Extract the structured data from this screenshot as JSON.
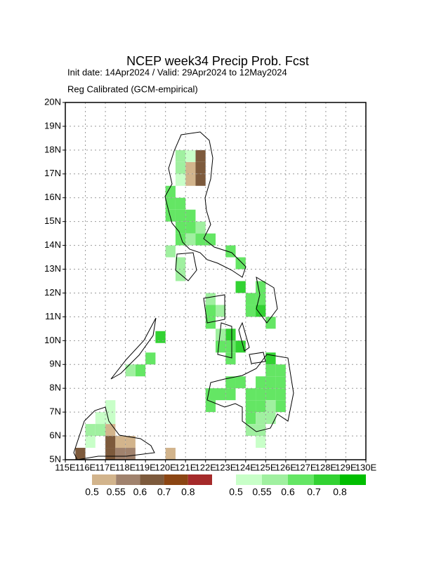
{
  "title": "NCEP week34 Precip Prob. Fcst",
  "subtitle": "Init date: 14Apr2024 / Valid: 29Apr2024 to 12May2024",
  "method": "Reg Calibrated (GCM-empirical)",
  "map": {
    "xlim": [
      115,
      130
    ],
    "ylim": [
      5,
      20
    ],
    "cell_size": 0.5,
    "grid": true,
    "xticks": [
      {
        "value": 115,
        "label": "115E"
      },
      {
        "value": 116,
        "label": "116E"
      },
      {
        "value": 117,
        "label": "117E"
      },
      {
        "value": 118,
        "label": "118E"
      },
      {
        "value": 119,
        "label": "119E"
      },
      {
        "value": 120,
        "label": "120E"
      },
      {
        "value": 121,
        "label": "121E"
      },
      {
        "value": 122,
        "label": "122E"
      },
      {
        "value": 123,
        "label": "123E"
      },
      {
        "value": 124,
        "label": "124E"
      },
      {
        "value": 125,
        "label": "125E"
      },
      {
        "value": 126,
        "label": "126E"
      },
      {
        "value": 127,
        "label": "127E"
      },
      {
        "value": 128,
        "label": "128E"
      },
      {
        "value": 129,
        "label": "129E"
      },
      {
        "value": 130,
        "label": "130E"
      }
    ],
    "yticks": [
      {
        "value": 5,
        "label": "5N"
      },
      {
        "value": 6,
        "label": "6N"
      },
      {
        "value": 7,
        "label": "7N"
      },
      {
        "value": 8,
        "label": "8N"
      },
      {
        "value": 9,
        "label": "9N"
      },
      {
        "value": 10,
        "label": "10N"
      },
      {
        "value": 11,
        "label": "11N"
      },
      {
        "value": 12,
        "label": "12N"
      },
      {
        "value": 13,
        "label": "13N"
      },
      {
        "value": 14,
        "label": "14N"
      },
      {
        "value": 15,
        "label": "15N"
      },
      {
        "value": 16,
        "label": "16N"
      },
      {
        "value": 17,
        "label": "17N"
      },
      {
        "value": 18,
        "label": "18N"
      },
      {
        "value": 19,
        "label": "19N"
      },
      {
        "value": 20,
        "label": "20N"
      }
    ],
    "dry_legend": {
      "thresholds": [
        0.5,
        0.55,
        0.6,
        0.7,
        0.8
      ],
      "colors": [
        "#d2b48c",
        "#a0826d",
        "#7d5a3c",
        "#8b4513",
        "#a52a2a"
      ]
    },
    "wet_legend": {
      "thresholds": [
        0.5,
        0.55,
        0.6,
        0.7,
        0.8
      ],
      "colors": [
        "#c8ffc8",
        "#a0f0a0",
        "#64e664",
        "#32d232",
        "#00be00"
      ]
    },
    "dry_cells": [
      {
        "lon": 121.5,
        "lat": 17.5,
        "prob": 0.6
      },
      {
        "lon": 121.0,
        "lat": 17.0,
        "prob": 0.5
      },
      {
        "lon": 121.0,
        "lat": 16.5,
        "prob": 0.5
      },
      {
        "lon": 121.5,
        "lat": 17.0,
        "prob": 0.6
      },
      {
        "lon": 121.5,
        "lat": 16.5,
        "prob": 0.6
      },
      {
        "lon": 117.0,
        "lat": 6.0,
        "prob": 0.5
      },
      {
        "lon": 117.0,
        "lat": 5.5,
        "prob": 0.6
      },
      {
        "lon": 117.5,
        "lat": 5.5,
        "prob": 0.5
      },
      {
        "lon": 118.0,
        "lat": 5.5,
        "prob": 0.5
      },
      {
        "lon": 117.0,
        "lat": 5.0,
        "prob": 0.6
      },
      {
        "lon": 115.5,
        "lat": 5.0,
        "prob": 0.6
      },
      {
        "lon": 117.5,
        "lat": 5.0,
        "prob": 0.55
      },
      {
        "lon": 118.0,
        "lat": 5.0,
        "prob": 0.55
      },
      {
        "lon": 120.0,
        "lat": 5.0,
        "prob": 0.5
      }
    ],
    "wet_cells": [
      {
        "lon": 120.5,
        "lat": 17.5,
        "prob": 0.55
      },
      {
        "lon": 121.0,
        "lat": 17.5,
        "prob": 0.5
      },
      {
        "lon": 120.5,
        "lat": 17.0,
        "prob": 0.55
      },
      {
        "lon": 120.5,
        "lat": 16.5,
        "prob": 0.5
      },
      {
        "lon": 120.0,
        "lat": 16.0,
        "prob": 0.6
      },
      {
        "lon": 120.0,
        "lat": 15.5,
        "prob": 0.6
      },
      {
        "lon": 120.5,
        "lat": 15.5,
        "prob": 0.6
      },
      {
        "lon": 120.0,
        "lat": 15.0,
        "prob": 0.6
      },
      {
        "lon": 120.5,
        "lat": 15.0,
        "prob": 0.6
      },
      {
        "lon": 121.0,
        "lat": 15.0,
        "prob": 0.6
      },
      {
        "lon": 120.5,
        "lat": 14.5,
        "prob": 0.6
      },
      {
        "lon": 121.0,
        "lat": 14.5,
        "prob": 0.6
      },
      {
        "lon": 121.5,
        "lat": 14.5,
        "prob": 0.55
      },
      {
        "lon": 120.5,
        "lat": 14.0,
        "prob": 0.6
      },
      {
        "lon": 121.0,
        "lat": 14.0,
        "prob": 0.55
      },
      {
        "lon": 121.5,
        "lat": 14.0,
        "prob": 0.6
      },
      {
        "lon": 122.0,
        "lat": 14.0,
        "prob": 0.6
      },
      {
        "lon": 120.0,
        "lat": 13.5,
        "prob": 0.55
      },
      {
        "lon": 120.5,
        "lat": 13.0,
        "prob": 0.55
      },
      {
        "lon": 120.5,
        "lat": 12.5,
        "prob": 0.55
      },
      {
        "lon": 123.0,
        "lat": 13.5,
        "prob": 0.6
      },
      {
        "lon": 123.5,
        "lat": 13.0,
        "prob": 0.6
      },
      {
        "lon": 123.5,
        "lat": 12.0,
        "prob": 0.7
      },
      {
        "lon": 124.5,
        "lat": 12.0,
        "prob": 0.6
      },
      {
        "lon": 124.0,
        "lat": 11.5,
        "prob": 0.6
      },
      {
        "lon": 124.5,
        "lat": 11.5,
        "prob": 0.6
      },
      {
        "lon": 122.0,
        "lat": 11.5,
        "prob": 0.55
      },
      {
        "lon": 122.0,
        "lat": 11.0,
        "prob": 0.6
      },
      {
        "lon": 122.0,
        "lat": 10.5,
        "prob": 0.6
      },
      {
        "lon": 122.5,
        "lat": 11.0,
        "prob": 0.55
      },
      {
        "lon": 124.5,
        "lat": 11.0,
        "prob": 0.7
      },
      {
        "lon": 124.0,
        "lat": 11.0,
        "prob": 0.6
      },
      {
        "lon": 125.0,
        "lat": 10.5,
        "prob": 0.6
      },
      {
        "lon": 123.0,
        "lat": 10.0,
        "prob": 0.7
      },
      {
        "lon": 122.5,
        "lat": 10.0,
        "prob": 0.55
      },
      {
        "lon": 123.0,
        "lat": 9.5,
        "prob": 0.6
      },
      {
        "lon": 122.5,
        "lat": 9.5,
        "prob": 0.6
      },
      {
        "lon": 123.5,
        "lat": 9.5,
        "prob": 0.7
      },
      {
        "lon": 123.0,
        "lat": 9.0,
        "prob": 0.6
      },
      {
        "lon": 119.5,
        "lat": 9.9,
        "prob": 0.7
      },
      {
        "lon": 119.0,
        "lat": 9.0,
        "prob": 0.6
      },
      {
        "lon": 118.5,
        "lat": 8.5,
        "prob": 0.6
      },
      {
        "lon": 118.0,
        "lat": 8.5,
        "prob": 0.55
      },
      {
        "lon": 125.0,
        "lat": 9.0,
        "prob": 0.7
      },
      {
        "lon": 125.5,
        "lat": 8.5,
        "prob": 0.6
      },
      {
        "lon": 125.0,
        "lat": 8.5,
        "prob": 0.6
      },
      {
        "lon": 122.0,
        "lat": 7.5,
        "prob": 0.6
      },
      {
        "lon": 122.0,
        "lat": 7.0,
        "prob": 0.6
      },
      {
        "lon": 122.5,
        "lat": 7.5,
        "prob": 0.6
      },
      {
        "lon": 123.0,
        "lat": 7.5,
        "prob": 0.6
      },
      {
        "lon": 123.0,
        "lat": 8.0,
        "prob": 0.6
      },
      {
        "lon": 123.5,
        "lat": 8.0,
        "prob": 0.6
      },
      {
        "lon": 124.0,
        "lat": 7.5,
        "prob": 0.6
      },
      {
        "lon": 124.5,
        "lat": 7.5,
        "prob": 0.6
      },
      {
        "lon": 124.5,
        "lat": 8.0,
        "prob": 0.6
      },
      {
        "lon": 125.0,
        "lat": 7.5,
        "prob": 0.6
      },
      {
        "lon": 125.0,
        "lat": 8.0,
        "prob": 0.6
      },
      {
        "lon": 125.5,
        "lat": 7.5,
        "prob": 0.6
      },
      {
        "lon": 125.5,
        "lat": 8.0,
        "prob": 0.6
      },
      {
        "lon": 124.0,
        "lat": 7.0,
        "prob": 0.6
      },
      {
        "lon": 124.5,
        "lat": 7.0,
        "prob": 0.6
      },
      {
        "lon": 125.0,
        "lat": 7.0,
        "prob": 0.55
      },
      {
        "lon": 125.5,
        "lat": 7.0,
        "prob": 0.6
      },
      {
        "lon": 124.0,
        "lat": 6.5,
        "prob": 0.6
      },
      {
        "lon": 124.5,
        "lat": 6.5,
        "prob": 0.55
      },
      {
        "lon": 125.0,
        "lat": 6.5,
        "prob": 0.55
      },
      {
        "lon": 124.0,
        "lat": 6.0,
        "prob": 0.55
      },
      {
        "lon": 124.5,
        "lat": 6.0,
        "prob": 0.55
      },
      {
        "lon": 124.5,
        "lat": 5.5,
        "prob": 0.5
      },
      {
        "lon": 116.5,
        "lat": 6.5,
        "prob": 0.5
      },
      {
        "lon": 117.0,
        "lat": 6.5,
        "prob": 0.5
      },
      {
        "lon": 116.0,
        "lat": 6.0,
        "prob": 0.55
      },
      {
        "lon": 116.5,
        "lat": 6.0,
        "prob": 0.55
      },
      {
        "lon": 117.0,
        "lat": 7.0,
        "prob": 0.5
      },
      {
        "lon": 116.0,
        "lat": 5.5,
        "prob": 0.5
      }
    ]
  }
}
